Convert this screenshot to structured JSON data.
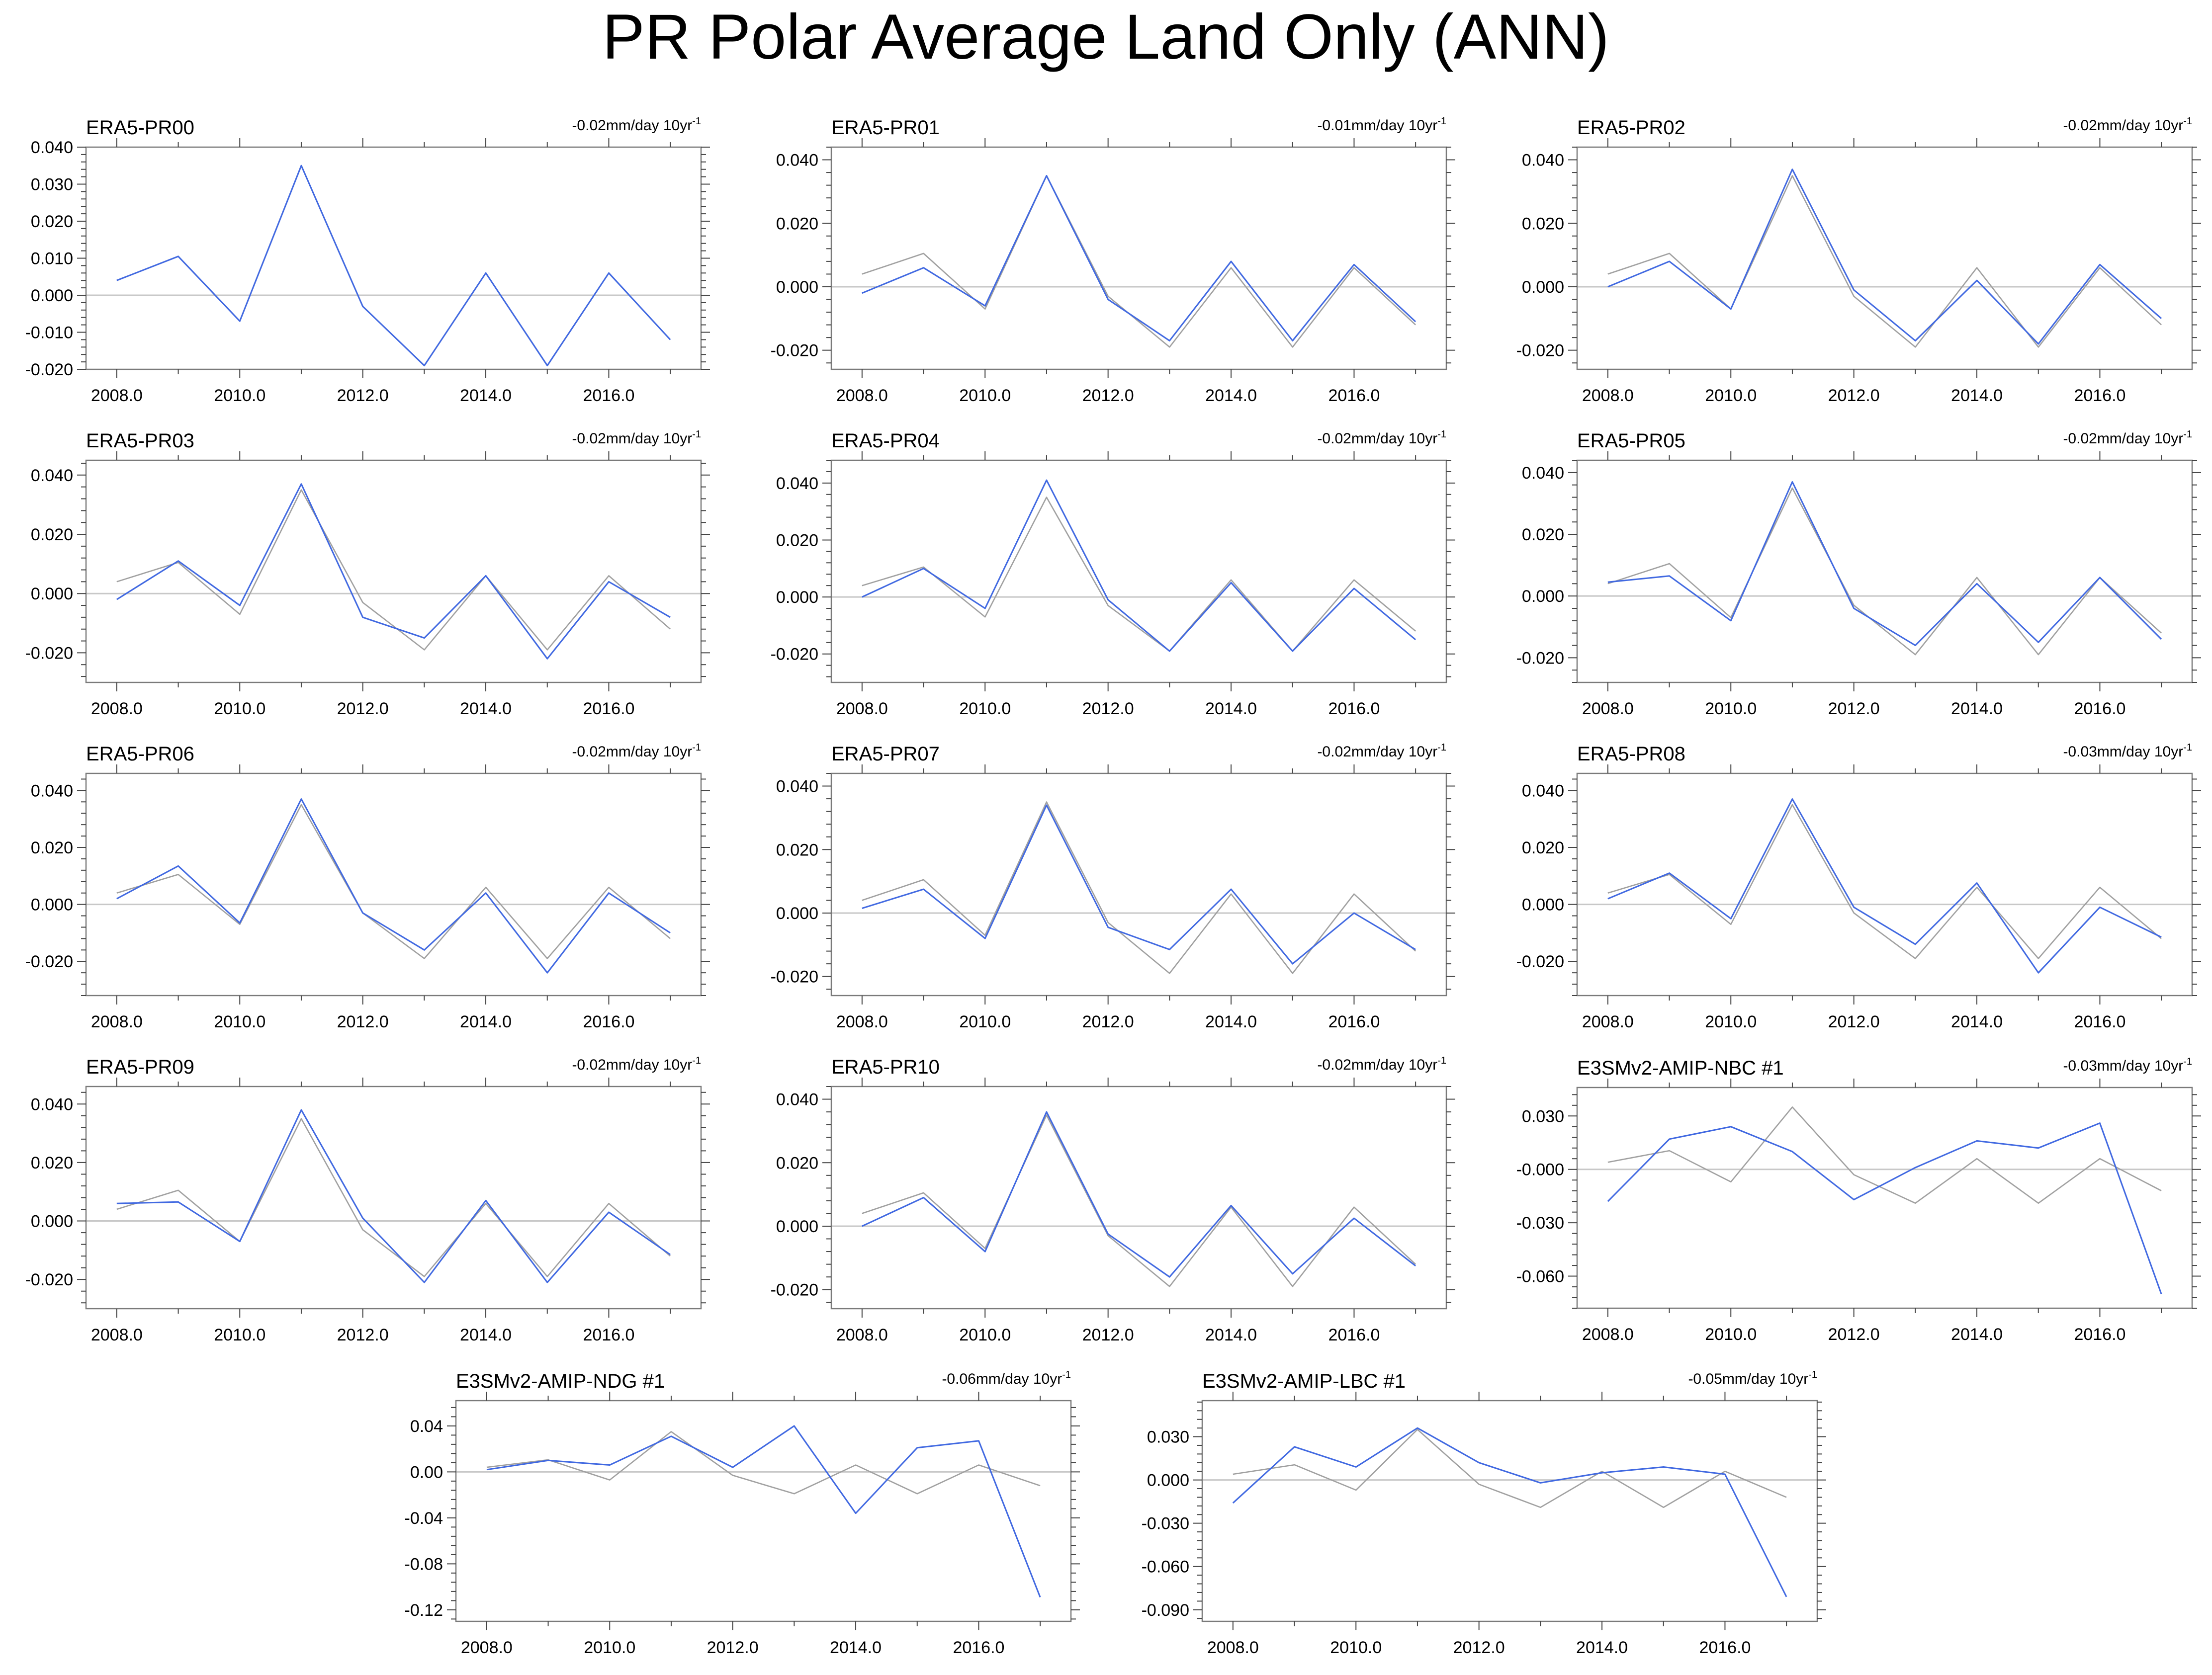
{
  "title": "PR Polar Average Land Only (ANN)",
  "colors": {
    "model": "#4169e1",
    "reference": "#a0a0a0",
    "zero_line": "#c8c8c8",
    "title_era5": "#000000",
    "title_nbc": "#00688b",
    "title_ndg": "#548b54",
    "title_lbc": "#8b8b8b"
  },
  "chart_data": [
    {
      "type": "line",
      "title": "ERA5-PR00",
      "trend": "-0.02mm/day 10yr",
      "trend_sup": "-1",
      "title_color": "title_era5",
      "x": [
        2008,
        2009,
        2010,
        2011,
        2012,
        2013,
        2014,
        2015,
        2016,
        2017
      ],
      "xticks": [
        "2008.0",
        "2010.0",
        "2012.0",
        "2014.0",
        "2016.0"
      ],
      "ylim": [
        -0.02,
        0.04
      ],
      "yticks": [
        "0.040",
        "0.030",
        "0.020",
        "0.010",
        "0.000",
        "-0.010",
        "-0.020"
      ],
      "series": [
        {
          "name": "reference",
          "values": [
            0.004,
            0.0105,
            -0.007,
            0.035,
            -0.003,
            -0.019,
            0.006,
            -0.019,
            0.006,
            -0.012
          ]
        },
        {
          "name": "model",
          "values": [
            0.004,
            0.0105,
            -0.007,
            0.035,
            -0.003,
            -0.019,
            0.006,
            -0.019,
            0.006,
            -0.012
          ]
        }
      ]
    },
    {
      "type": "line",
      "title": "ERA5-PR01",
      "trend": "-0.01mm/day 10yr",
      "trend_sup": "-1",
      "title_color": "title_era5",
      "x": [
        2008,
        2009,
        2010,
        2011,
        2012,
        2013,
        2014,
        2015,
        2016,
        2017
      ],
      "xticks": [
        "2008.0",
        "2010.0",
        "2012.0",
        "2014.0",
        "2016.0"
      ],
      "ylim": [
        -0.026,
        0.044
      ],
      "yticks": [
        "0.040",
        "0.020",
        "0.000",
        "-0.020"
      ],
      "series": [
        {
          "name": "reference",
          "values": [
            0.004,
            0.0105,
            -0.007,
            0.035,
            -0.003,
            -0.019,
            0.006,
            -0.019,
            0.006,
            -0.012
          ]
        },
        {
          "name": "model",
          "values": [
            -0.002,
            0.006,
            -0.006,
            0.035,
            -0.004,
            -0.017,
            0.008,
            -0.017,
            0.007,
            -0.011
          ]
        }
      ]
    },
    {
      "type": "line",
      "title": "ERA5-PR02",
      "trend": "-0.02mm/day 10yr",
      "trend_sup": "-1",
      "title_color": "title_era5",
      "x": [
        2008,
        2009,
        2010,
        2011,
        2012,
        2013,
        2014,
        2015,
        2016,
        2017
      ],
      "xticks": [
        "2008.0",
        "2010.0",
        "2012.0",
        "2014.0",
        "2016.0"
      ],
      "ylim": [
        -0.026,
        0.044
      ],
      "yticks": [
        "0.040",
        "0.020",
        "0.000",
        "-0.020"
      ],
      "series": [
        {
          "name": "reference",
          "values": [
            0.004,
            0.0105,
            -0.007,
            0.035,
            -0.003,
            -0.019,
            0.006,
            -0.019,
            0.006,
            -0.012
          ]
        },
        {
          "name": "model",
          "values": [
            0.0,
            0.008,
            -0.007,
            0.037,
            -0.001,
            -0.017,
            0.002,
            -0.018,
            0.007,
            -0.01
          ]
        }
      ]
    },
    {
      "type": "line",
      "title": "ERA5-PR03",
      "trend": "-0.02mm/day 10yr",
      "trend_sup": "-1",
      "title_color": "title_era5",
      "x": [
        2008,
        2009,
        2010,
        2011,
        2012,
        2013,
        2014,
        2015,
        2016,
        2017
      ],
      "xticks": [
        "2008.0",
        "2010.0",
        "2012.0",
        "2014.0",
        "2016.0"
      ],
      "ylim": [
        -0.03,
        0.045
      ],
      "yticks": [
        "0.040",
        "0.020",
        "0.000",
        "-0.020"
      ],
      "series": [
        {
          "name": "reference",
          "values": [
            0.004,
            0.0105,
            -0.007,
            0.035,
            -0.003,
            -0.019,
            0.006,
            -0.019,
            0.006,
            -0.012
          ]
        },
        {
          "name": "model",
          "values": [
            -0.002,
            0.011,
            -0.004,
            0.037,
            -0.008,
            -0.015,
            0.006,
            -0.022,
            0.004,
            -0.008
          ]
        }
      ]
    },
    {
      "type": "line",
      "title": "ERA5-PR04",
      "trend": "-0.02mm/day 10yr",
      "trend_sup": "-1",
      "title_color": "title_era5",
      "x": [
        2008,
        2009,
        2010,
        2011,
        2012,
        2013,
        2014,
        2015,
        2016,
        2017
      ],
      "xticks": [
        "2008.0",
        "2010.0",
        "2012.0",
        "2014.0",
        "2016.0"
      ],
      "ylim": [
        -0.03,
        0.048
      ],
      "yticks": [
        "0.040",
        "0.020",
        "0.000",
        "-0.020"
      ],
      "series": [
        {
          "name": "reference",
          "values": [
            0.004,
            0.0105,
            -0.007,
            0.035,
            -0.003,
            -0.019,
            0.006,
            -0.019,
            0.006,
            -0.012
          ]
        },
        {
          "name": "model",
          "values": [
            0.0,
            0.01,
            -0.004,
            0.041,
            -0.001,
            -0.019,
            0.005,
            -0.019,
            0.003,
            -0.015
          ]
        }
      ]
    },
    {
      "type": "line",
      "title": "ERA5-PR05",
      "trend": "-0.02mm/day 10yr",
      "trend_sup": "-1",
      "title_color": "title_era5",
      "x": [
        2008,
        2009,
        2010,
        2011,
        2012,
        2013,
        2014,
        2015,
        2016,
        2017
      ],
      "xticks": [
        "2008.0",
        "2010.0",
        "2012.0",
        "2014.0",
        "2016.0"
      ],
      "ylim": [
        -0.028,
        0.044
      ],
      "yticks": [
        "0.040",
        "0.020",
        "0.000",
        "-0.020"
      ],
      "series": [
        {
          "name": "reference",
          "values": [
            0.004,
            0.0105,
            -0.007,
            0.035,
            -0.003,
            -0.019,
            0.006,
            -0.019,
            0.006,
            -0.012
          ]
        },
        {
          "name": "model",
          "values": [
            0.0045,
            0.0065,
            -0.008,
            0.037,
            -0.004,
            -0.016,
            0.004,
            -0.015,
            0.006,
            -0.014
          ]
        }
      ]
    },
    {
      "type": "line",
      "title": "ERA5-PR06",
      "trend": "-0.02mm/day 10yr",
      "trend_sup": "-1",
      "title_color": "title_era5",
      "x": [
        2008,
        2009,
        2010,
        2011,
        2012,
        2013,
        2014,
        2015,
        2016,
        2017
      ],
      "xticks": [
        "2008.0",
        "2010.0",
        "2012.0",
        "2014.0",
        "2016.0"
      ],
      "ylim": [
        -0.032,
        0.046
      ],
      "yticks": [
        "0.040",
        "0.020",
        "0.000",
        "-0.020"
      ],
      "series": [
        {
          "name": "reference",
          "values": [
            0.004,
            0.0105,
            -0.007,
            0.035,
            -0.003,
            -0.019,
            0.006,
            -0.019,
            0.006,
            -0.012
          ]
        },
        {
          "name": "model",
          "values": [
            0.002,
            0.0135,
            -0.0065,
            0.037,
            -0.003,
            -0.016,
            0.004,
            -0.024,
            0.004,
            -0.01
          ]
        }
      ]
    },
    {
      "type": "line",
      "title": "ERA5-PR07",
      "trend": "-0.02mm/day 10yr",
      "trend_sup": "-1",
      "title_color": "title_era5",
      "x": [
        2008,
        2009,
        2010,
        2011,
        2012,
        2013,
        2014,
        2015,
        2016,
        2017
      ],
      "xticks": [
        "2008.0",
        "2010.0",
        "2012.0",
        "2014.0",
        "2016.0"
      ],
      "ylim": [
        -0.026,
        0.044
      ],
      "yticks": [
        "0.040",
        "0.020",
        "0.000",
        "-0.020"
      ],
      "series": [
        {
          "name": "reference",
          "values": [
            0.004,
            0.0105,
            -0.007,
            0.035,
            -0.003,
            -0.019,
            0.006,
            -0.019,
            0.006,
            -0.012
          ]
        },
        {
          "name": "model",
          "values": [
            0.0015,
            0.0075,
            -0.008,
            0.034,
            -0.0045,
            -0.0115,
            0.0075,
            -0.016,
            0.0,
            -0.0115
          ]
        }
      ]
    },
    {
      "type": "line",
      "title": "ERA5-PR08",
      "trend": "-0.03mm/day 10yr",
      "trend_sup": "-1",
      "title_color": "title_era5",
      "x": [
        2008,
        2009,
        2010,
        2011,
        2012,
        2013,
        2014,
        2015,
        2016,
        2017
      ],
      "xticks": [
        "2008.0",
        "2010.0",
        "2012.0",
        "2014.0",
        "2016.0"
      ],
      "ylim": [
        -0.032,
        0.046
      ],
      "yticks": [
        "0.040",
        "0.020",
        "0.000",
        "-0.020"
      ],
      "series": [
        {
          "name": "reference",
          "values": [
            0.004,
            0.0105,
            -0.007,
            0.035,
            -0.003,
            -0.019,
            0.006,
            -0.019,
            0.006,
            -0.012
          ]
        },
        {
          "name": "model",
          "values": [
            0.002,
            0.011,
            -0.005,
            0.037,
            -0.001,
            -0.014,
            0.0075,
            -0.024,
            -0.001,
            -0.0115
          ]
        }
      ]
    },
    {
      "type": "line",
      "title": "ERA5-PR09",
      "trend": "-0.02mm/day 10yr",
      "trend_sup": "-1",
      "title_color": "title_era5",
      "x": [
        2008,
        2009,
        2010,
        2011,
        2012,
        2013,
        2014,
        2015,
        2016,
        2017
      ],
      "xticks": [
        "2008.0",
        "2010.0",
        "2012.0",
        "2014.0",
        "2016.0"
      ],
      "ylim": [
        -0.03,
        0.046
      ],
      "yticks": [
        "0.040",
        "0.020",
        "0.000",
        "-0.020"
      ],
      "series": [
        {
          "name": "reference",
          "values": [
            0.004,
            0.0105,
            -0.007,
            0.035,
            -0.003,
            -0.019,
            0.006,
            -0.019,
            0.006,
            -0.012
          ]
        },
        {
          "name": "model",
          "values": [
            0.006,
            0.0065,
            -0.007,
            0.038,
            0.001,
            -0.021,
            0.007,
            -0.021,
            0.003,
            -0.0115
          ]
        }
      ]
    },
    {
      "type": "line",
      "title": "ERA5-PR10",
      "trend": "-0.02mm/day 10yr",
      "trend_sup": "-1",
      "title_color": "title_era5",
      "x": [
        2008,
        2009,
        2010,
        2011,
        2012,
        2013,
        2014,
        2015,
        2016,
        2017
      ],
      "xticks": [
        "2008.0",
        "2010.0",
        "2012.0",
        "2014.0",
        "2016.0"
      ],
      "ylim": [
        -0.026,
        0.044
      ],
      "yticks": [
        "0.040",
        "0.020",
        "0.000",
        "-0.020"
      ],
      "series": [
        {
          "name": "reference",
          "values": [
            0.004,
            0.0105,
            -0.007,
            0.035,
            -0.003,
            -0.019,
            0.006,
            -0.019,
            0.006,
            -0.012
          ]
        },
        {
          "name": "model",
          "values": [
            0.0,
            0.009,
            -0.008,
            0.036,
            -0.0025,
            -0.016,
            0.0065,
            -0.015,
            0.0025,
            -0.0125
          ]
        }
      ]
    },
    {
      "type": "line",
      "title": "E3SMv2-AMIP-NBC #1",
      "trend": "-0.03mm/day 10yr",
      "trend_sup": "-1",
      "title_color": "title_nbc",
      "x": [
        2008,
        2009,
        2010,
        2011,
        2012,
        2013,
        2014,
        2015,
        2016,
        2017
      ],
      "xticks": [
        "2008.0",
        "2010.0",
        "2012.0",
        "2014.0",
        "2016.0"
      ],
      "ylim": [
        -0.078,
        0.046
      ],
      "yticks": [
        "0.030",
        "-0.000",
        "-0.030",
        "-0.060"
      ],
      "series": [
        {
          "name": "reference",
          "values": [
            0.004,
            0.0105,
            -0.007,
            0.035,
            -0.003,
            -0.019,
            0.006,
            -0.019,
            0.006,
            -0.012
          ]
        },
        {
          "name": "model",
          "values": [
            -0.018,
            0.017,
            0.024,
            0.01,
            -0.017,
            0.001,
            0.016,
            0.012,
            0.026,
            -0.07
          ]
        }
      ]
    },
    {
      "type": "line",
      "title": "E3SMv2-AMIP-NDG #1",
      "trend": "-0.06mm/day 10yr",
      "trend_sup": "-1",
      "title_color": "title_ndg",
      "x": [
        2008,
        2009,
        2010,
        2011,
        2012,
        2013,
        2014,
        2015,
        2016,
        2017
      ],
      "xticks": [
        "2008.0",
        "2010.0",
        "2012.0",
        "2014.0",
        "2016.0"
      ],
      "ylim": [
        -0.13,
        0.062
      ],
      "yticks": [
        "0.04",
        "0.00",
        "-0.04",
        "-0.08",
        "-0.12"
      ],
      "series": [
        {
          "name": "reference",
          "values": [
            0.004,
            0.0105,
            -0.007,
            0.035,
            -0.003,
            -0.019,
            0.006,
            -0.019,
            0.006,
            -0.012
          ]
        },
        {
          "name": "model",
          "values": [
            0.002,
            0.01,
            0.006,
            0.031,
            0.004,
            0.04,
            -0.036,
            0.021,
            0.027,
            -0.109
          ]
        }
      ]
    },
    {
      "type": "line",
      "title": "E3SMv2-AMIP-LBC #1",
      "trend": "-0.05mm/day 10yr",
      "trend_sup": "-1",
      "title_color": "title_lbc",
      "x": [
        2008,
        2009,
        2010,
        2011,
        2012,
        2013,
        2014,
        2015,
        2016,
        2017
      ],
      "xticks": [
        "2008.0",
        "2010.0",
        "2012.0",
        "2014.0",
        "2016.0"
      ],
      "ylim": [
        -0.098,
        0.055
      ],
      "yticks": [
        "0.030",
        "0.000",
        "-0.030",
        "-0.060",
        "-0.090"
      ],
      "series": [
        {
          "name": "reference",
          "values": [
            0.004,
            0.0105,
            -0.007,
            0.035,
            -0.003,
            -0.019,
            0.006,
            -0.019,
            0.006,
            -0.012
          ]
        },
        {
          "name": "model",
          "values": [
            -0.016,
            0.023,
            0.009,
            0.036,
            0.012,
            -0.002,
            0.005,
            0.009,
            0.004,
            -0.081
          ]
        }
      ]
    }
  ]
}
